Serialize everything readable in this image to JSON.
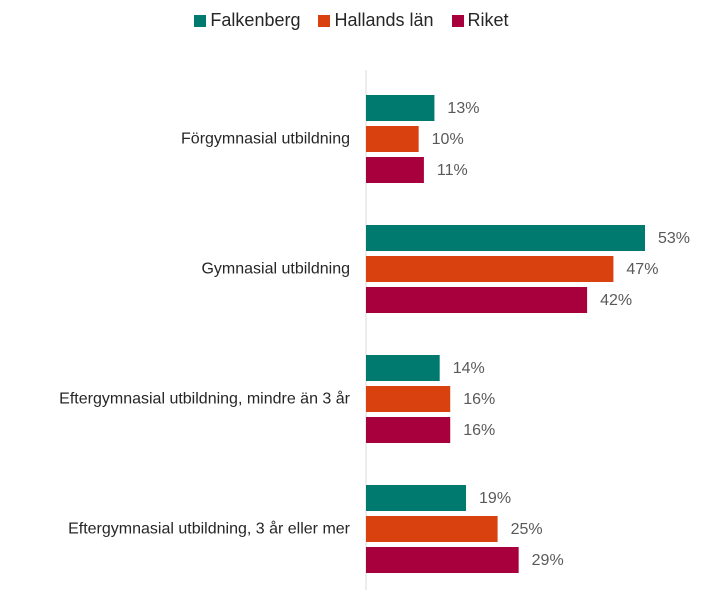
{
  "chart_data": {
    "type": "barh",
    "categories": [
      "Förgymnasial utbildning",
      "Gymnasial utbildning",
      "Eftergymnasial utbildning, mindre än 3 år",
      "Eftergymnasial utbildning, 3 år eller mer"
    ],
    "series": [
      {
        "name": "Falkenberg",
        "color": "#007a6e",
        "values": [
          13,
          53,
          14,
          19
        ],
        "value_labels": [
          "13%",
          "53%",
          "14%",
          "19%"
        ]
      },
      {
        "name": "Hallands län",
        "color": "#d9410f",
        "values": [
          10,
          47,
          16,
          25
        ],
        "value_labels": [
          "10%",
          "47%",
          "16%",
          "25%"
        ]
      },
      {
        "name": "Riket",
        "color": "#a8003c",
        "values": [
          11,
          42,
          16,
          29
        ],
        "value_labels": [
          "11%",
          "42%",
          "16%",
          "29%"
        ]
      }
    ],
    "legend": "top"
  }
}
